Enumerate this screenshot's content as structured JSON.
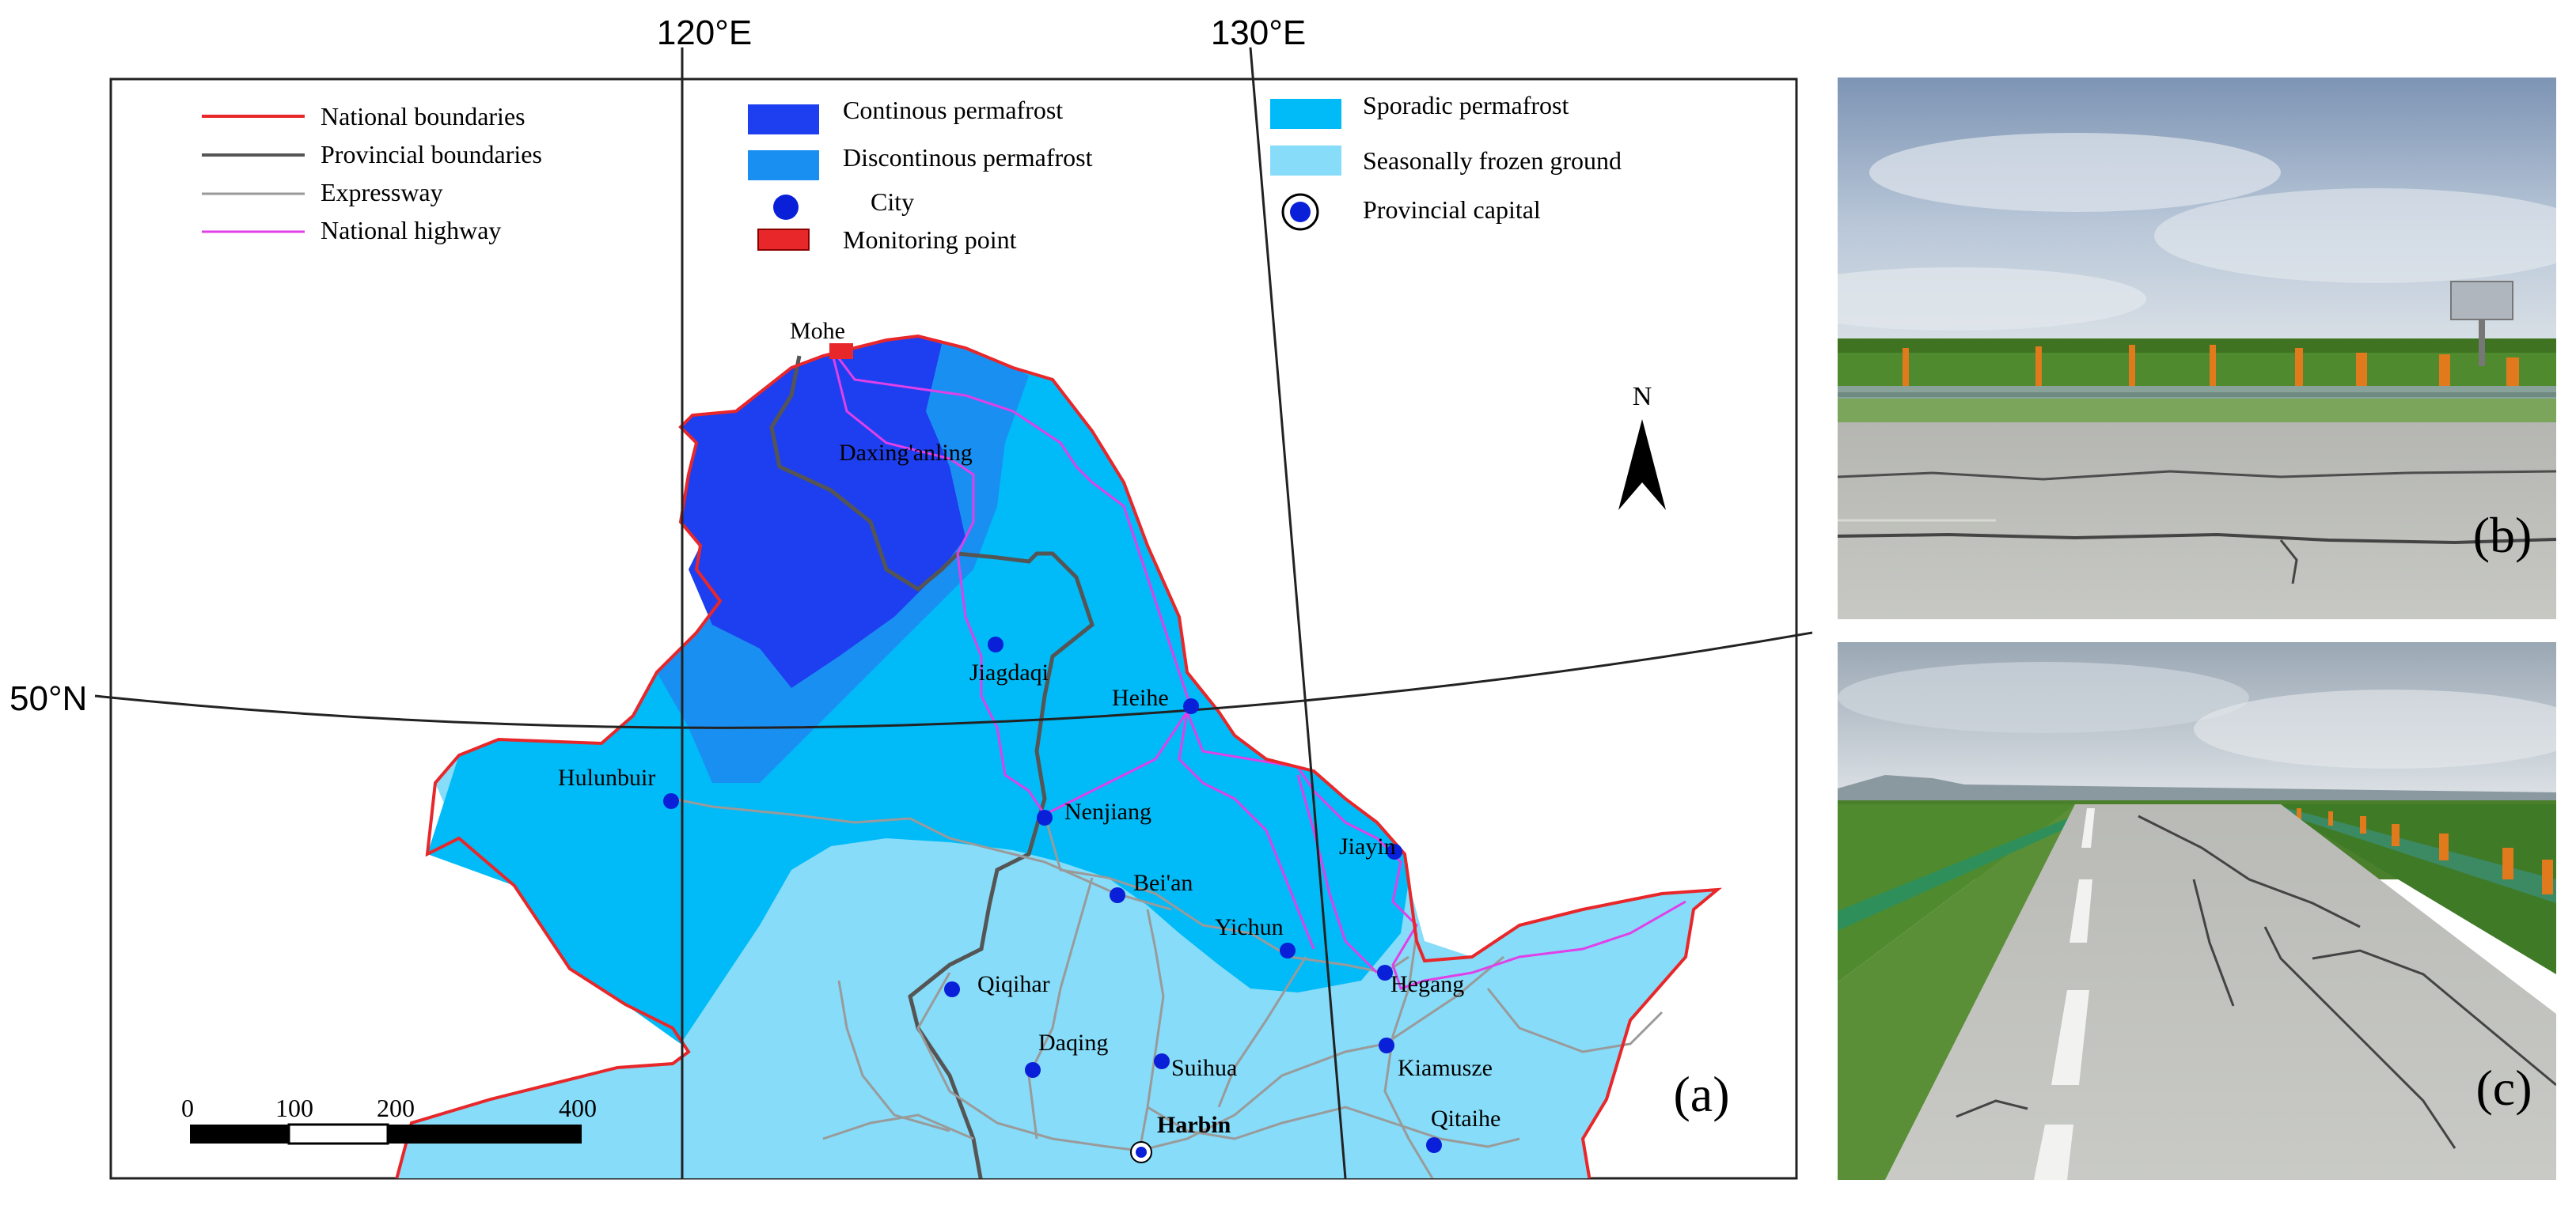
{
  "figure": {
    "panel_labels": {
      "a": "(a)",
      "b": "(b)",
      "c": "(c)"
    }
  },
  "map": {
    "graticule": {
      "lon_120": "120°E",
      "lon_130": "130°E",
      "lat_50": "50°N"
    },
    "north_arrow": "N",
    "scale_bar": {
      "ticks": [
        "0",
        "100",
        "200",
        "400"
      ]
    },
    "colors": {
      "continuous": "#1e3ff0",
      "discontinuous": "#1a8ff2",
      "sporadic": "#00bbf7",
      "seasonal": "#86dcf9",
      "national_boundary": "#e8272a",
      "provincial_boundary": "#555555",
      "expressway": "#9a9a9a",
      "national_highway": "#e040e8",
      "city": "#0a1fd8"
    },
    "legend": {
      "national_boundaries": "National boundaries",
      "provincial_boundaries": "Provincial boundaries",
      "expressway": "Expressway",
      "national_highway": "National highway",
      "continuous_permafrost": "Continous permafrost",
      "discontinuous_permafrost": "Discontinous permafrost",
      "city": "City",
      "monitoring_point": "Monitoring point",
      "sporadic_permafrost": "Sporadic permafrost",
      "seasonally_frozen_ground": "Seasonally frozen ground",
      "provincial_capital": "Provincial capital"
    },
    "places": {
      "mohe": "Mohe",
      "daxinganling": "Daxing'anling",
      "jiagdaqi": "Jiagdaqi",
      "heihe": "Heihe",
      "hulunbuir": "Hulunbuir",
      "nenjiang": "Nenjiang",
      "beian": "Bei'an",
      "jiayin": "Jiayin",
      "yichun": "Yichun",
      "qiqihar": "Qiqihar",
      "hegang": "Hegang",
      "daqing": "Daqing",
      "suihua": "Suihua",
      "kiamusze": "Kiamusze",
      "harbin": "Harbin",
      "qitaihe": "Qitaihe"
    }
  }
}
